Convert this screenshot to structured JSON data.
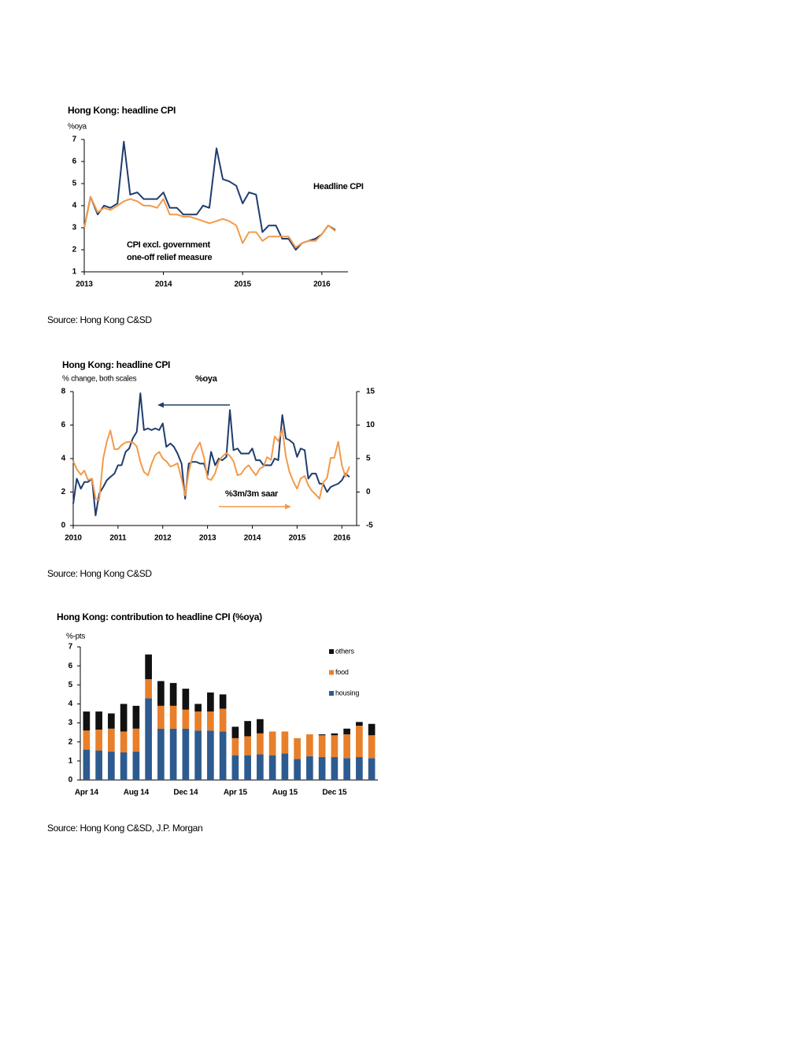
{
  "chart_data": [
    {
      "type": "line",
      "title": "Hong Kong: headline CPI",
      "y_label": "%oya",
      "source": "Source: Hong Kong C&SD",
      "x": [
        2013,
        2013.08,
        2013.17,
        2013.25,
        2013.33,
        2013.42,
        2013.5,
        2013.58,
        2013.67,
        2013.75,
        2013.83,
        2013.92,
        2014,
        2014.08,
        2014.17,
        2014.25,
        2014.33,
        2014.42,
        2014.5,
        2014.58,
        2014.67,
        2014.75,
        2014.83,
        2014.92,
        2015,
        2015.08,
        2015.17,
        2015.25,
        2015.33,
        2015.42,
        2015.5,
        2015.58,
        2015.67,
        2015.75,
        2015.83,
        2015.92,
        2016,
        2016.08,
        2016.17
      ],
      "xlim": [
        2013,
        2016.33
      ],
      "xticks": [
        2013,
        2014,
        2015,
        2016
      ],
      "ylim": [
        1,
        7
      ],
      "yticks": [
        1,
        2,
        3,
        4,
        5,
        6,
        7
      ],
      "series": [
        {
          "name": "Headline CPI",
          "color": "#1f3d6d",
          "values": [
            3.0,
            4.4,
            3.6,
            4.0,
            3.9,
            4.1,
            6.9,
            4.5,
            4.6,
            4.3,
            4.3,
            4.3,
            4.6,
            3.9,
            3.9,
            3.6,
            3.6,
            3.6,
            4.0,
            3.9,
            6.6,
            5.2,
            5.1,
            4.9,
            4.1,
            4.6,
            4.5,
            2.8,
            3.1,
            3.1,
            2.5,
            2.5,
            2.0,
            2.3,
            2.4,
            2.5,
            2.7,
            3.1,
            2.9
          ]
        },
        {
          "name": "CPI excl. government one-off relief measure",
          "color": "#f39a4a",
          "values": [
            3.0,
            4.4,
            3.7,
            3.9,
            3.8,
            4.0,
            4.2,
            4.3,
            4.2,
            4.0,
            4.0,
            3.9,
            4.3,
            3.6,
            3.6,
            3.5,
            3.5,
            3.4,
            3.3,
            3.2,
            3.3,
            3.4,
            3.3,
            3.1,
            2.3,
            2.8,
            2.8,
            2.4,
            2.6,
            2.6,
            2.6,
            2.6,
            2.1,
            2.3,
            2.4,
            2.4,
            2.7,
            3.1,
            2.85
          ]
        }
      ]
    },
    {
      "type": "line",
      "title": "Hong Kong: headline CPI",
      "y_label": "% change, both scales",
      "source": "Source: Hong Kong C&SD",
      "x": [
        2010,
        2010.08,
        2010.17,
        2010.25,
        2010.33,
        2010.42,
        2010.5,
        2010.58,
        2010.67,
        2010.75,
        2010.83,
        2010.92,
        2011,
        2011.08,
        2011.17,
        2011.25,
        2011.33,
        2011.42,
        2011.5,
        2011.58,
        2011.67,
        2011.75,
        2011.83,
        2011.92,
        2012,
        2012.08,
        2012.17,
        2012.25,
        2012.33,
        2012.42,
        2012.5,
        2012.58,
        2012.67,
        2012.75,
        2012.83,
        2012.92,
        2013,
        2013.08,
        2013.17,
        2013.25,
        2013.33,
        2013.42,
        2013.5,
        2013.58,
        2013.67,
        2013.75,
        2013.83,
        2013.92,
        2014,
        2014.08,
        2014.17,
        2014.25,
        2014.33,
        2014.42,
        2014.5,
        2014.58,
        2014.67,
        2014.75,
        2014.83,
        2014.92,
        2015,
        2015.08,
        2015.17,
        2015.25,
        2015.33,
        2015.42,
        2015.5,
        2015.58,
        2015.67,
        2015.75,
        2015.83,
        2015.92,
        2016,
        2016.08,
        2016.17
      ],
      "xlim": [
        2010,
        2016.33
      ],
      "xticks": [
        2010,
        2011,
        2012,
        2013,
        2014,
        2015,
        2016
      ],
      "ylim": [
        0,
        8
      ],
      "yticks": [
        0,
        2,
        4,
        6,
        8
      ],
      "y2lim": [
        -5,
        15
      ],
      "y2ticks": [
        -5,
        0,
        5,
        10,
        15
      ],
      "series": [
        {
          "name": "%oya",
          "color": "#1f3d6d",
          "values": [
            1.3,
            2.8,
            2.2,
            2.6,
            2.6,
            2.8,
            0.6,
            1.9,
            2.3,
            2.7,
            2.9,
            3.1,
            3.6,
            3.6,
            4.4,
            4.6,
            5.2,
            5.6,
            7.9,
            5.7,
            5.8,
            5.7,
            5.8,
            5.7,
            6.1,
            4.7,
            4.9,
            4.7,
            4.3,
            3.7,
            1.6,
            3.7,
            3.8,
            3.8,
            3.7,
            3.7,
            3.0,
            4.4,
            3.6,
            4.0,
            3.9,
            4.1,
            6.9,
            4.5,
            4.6,
            4.3,
            4.3,
            4.3,
            4.6,
            3.9,
            3.9,
            3.6,
            3.6,
            3.6,
            4.0,
            3.9,
            6.6,
            5.2,
            5.1,
            4.9,
            4.1,
            4.6,
            4.5,
            2.8,
            3.1,
            3.1,
            2.5,
            2.5,
            2.0,
            2.3,
            2.4,
            2.5,
            2.7,
            3.1,
            2.9
          ]
        },
        {
          "name": "%3m/3m saar",
          "color": "#f39a4a",
          "axis": "y2",
          "values": [
            4.6,
            3.4,
            2.6,
            3.2,
            1.8,
            2.0,
            -1.0,
            -1.2,
            5.0,
            7.5,
            9.2,
            6.4,
            6.4,
            7.0,
            7.4,
            7.5,
            7.4,
            6.8,
            4.5,
            3.0,
            2.5,
            4.2,
            5.5,
            6.0,
            5.0,
            4.6,
            3.8,
            4.0,
            4.3,
            2.0,
            -0.5,
            3.0,
            5.5,
            6.5,
            7.4,
            5.2,
            2.0,
            1.8,
            2.8,
            4.6,
            5.3,
            5.8,
            5.4,
            4.6,
            2.5,
            2.7,
            3.5,
            4.0,
            3.2,
            2.5,
            3.5,
            3.8,
            5.2,
            4.8,
            8.3,
            7.6,
            9.4,
            5.3,
            3.0,
            1.5,
            0.5,
            2.0,
            2.4,
            1.0,
            0.2,
            -0.4,
            -1.0,
            1.4,
            2.1,
            5.1,
            5.1,
            7.5,
            4.0,
            2.3,
            3.8
          ]
        }
      ]
    },
    {
      "type": "stacked_bar",
      "title": "Hong Kong: contribution to headline CPI (%oya)",
      "y_label": "%-pts",
      "source": "Source: Hong Kong C&SD, J.P. Morgan",
      "categories": [
        "Apr 14",
        null,
        null,
        null,
        "Aug 14",
        null,
        null,
        null,
        "Dec 14",
        null,
        null,
        null,
        "Apr 15",
        null,
        null,
        null,
        "Aug 15",
        null,
        null,
        null,
        "Dec 15",
        null,
        null,
        null
      ],
      "ylim": [
        0,
        7
      ],
      "yticks": [
        0,
        1,
        2,
        3,
        4,
        5,
        6,
        7
      ],
      "legend": "top-right",
      "series": [
        {
          "name": "housing",
          "color": "#2d5b8f",
          "values": [
            1.6,
            1.55,
            1.5,
            1.45,
            1.5,
            4.3,
            2.7,
            2.7,
            2.7,
            2.6,
            2.6,
            2.55,
            1.3,
            1.3,
            1.35,
            1.3,
            1.4,
            1.1,
            1.25,
            1.2,
            1.2,
            1.15,
            1.2,
            1.15
          ]
        },
        {
          "name": "food",
          "color": "#e87f2a",
          "values": [
            1.0,
            1.1,
            1.2,
            1.1,
            1.2,
            1.0,
            1.2,
            1.2,
            1.0,
            1.0,
            1.0,
            1.2,
            0.9,
            1.0,
            1.1,
            1.25,
            1.15,
            1.1,
            1.15,
            1.15,
            1.15,
            1.25,
            1.65,
            1.2
          ]
        },
        {
          "name": "others",
          "color": "#111111",
          "values": [
            1.0,
            0.95,
            0.8,
            1.45,
            1.2,
            1.3,
            1.3,
            1.2,
            1.1,
            0.4,
            1.0,
            0.75,
            0.6,
            0.8,
            0.75,
            0,
            0,
            0,
            0,
            0.05,
            0.1,
            0.3,
            0.2,
            0.6
          ]
        }
      ]
    }
  ]
}
